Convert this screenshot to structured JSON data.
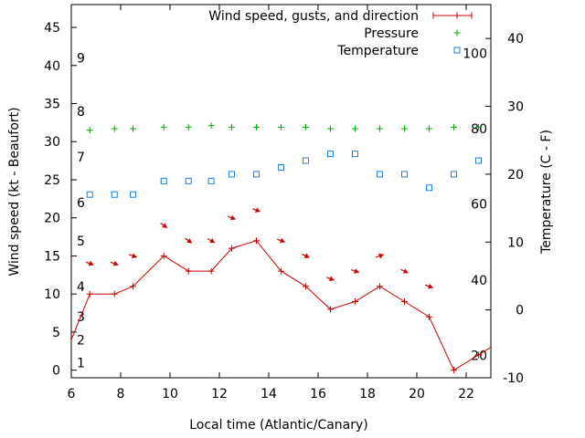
{
  "chart_data": {
    "type": "line",
    "xlabel": "Local time (Atlantic/Canary)",
    "ylabel": "Wind speed (kt - Beaufort)",
    "y2label": "Temperature (C - F)",
    "xlim": [
      6,
      23
    ],
    "ylim": [
      -1,
      48
    ],
    "y2lim": [
      -10,
      45
    ],
    "x_ticks": [
      6,
      8,
      10,
      12,
      14,
      16,
      18,
      20,
      22
    ],
    "y_ticks": [
      0,
      5,
      10,
      15,
      20,
      25,
      30,
      35,
      40,
      45
    ],
    "y2_ticks": [
      -10,
      0,
      10,
      20,
      30,
      40
    ],
    "beaufort_labels": [
      {
        "label": "1",
        "y": 1
      },
      {
        "label": "2",
        "y": 4
      },
      {
        "label": "3",
        "y": 7
      },
      {
        "label": "4",
        "y": 11
      },
      {
        "label": "5",
        "y": 17
      },
      {
        "label": "6",
        "y": 22
      },
      {
        "label": "7",
        "y": 28
      },
      {
        "label": "8",
        "y": 34
      },
      {
        "label": "9",
        "y": 41
      }
    ],
    "fahrenheit_labels": [
      {
        "label": "20",
        "y2": -6.7
      },
      {
        "label": "40",
        "y2": 4.4
      },
      {
        "label": "60",
        "y2": 15.6
      },
      {
        "label": "80",
        "y2": 26.7
      },
      {
        "label": "100",
        "y2": 37.8
      }
    ],
    "legend": {
      "placement": "top-right",
      "entries": [
        "Wind speed, gusts, and direction",
        "Pressure",
        "Temperature"
      ]
    },
    "colors": {
      "wind": "#cc0000",
      "pressure": "#00aa00",
      "temperature": "#1e7fd6"
    },
    "series": [
      {
        "name": "Wind speed, gusts, and direction",
        "x": [
          6,
          6.75,
          7.75,
          8.5,
          9.75,
          10.75,
          11.67,
          12.5,
          13.5,
          14.5,
          15.5,
          16.5,
          17.5,
          18.5,
          19.5,
          20.5,
          21.5,
          22.5,
          23
        ],
        "y": [
          4,
          10,
          10,
          11,
          15,
          13,
          13,
          16,
          17,
          13,
          11,
          8,
          9,
          11,
          9,
          7,
          0,
          2,
          3
        ]
      },
      {
        "name": "Pressure",
        "x": [
          6.75,
          7.75,
          8.5,
          9.75,
          10.75,
          11.67,
          12.5,
          13.5,
          14.5,
          15.5,
          16.5,
          17.5,
          18.5,
          19.5,
          20.5,
          21.5,
          22.5
        ],
        "y": [
          31.5,
          31.7,
          31.7,
          31.9,
          31.9,
          32.1,
          31.9,
          31.9,
          31.9,
          31.9,
          31.7,
          31.7,
          31.7,
          31.7,
          31.7,
          31.9,
          31.9
        ]
      },
      {
        "name": "Temperature",
        "x": [
          6.75,
          7.75,
          8.5,
          9.75,
          10.75,
          11.67,
          12.5,
          13.5,
          14.5,
          15.5,
          16.5,
          17.5,
          18.5,
          19.5,
          20.5,
          21.5,
          22.5
        ],
        "y2": [
          17,
          17,
          17,
          19,
          19,
          19,
          20,
          20,
          21,
          22,
          23,
          23,
          20,
          20,
          18,
          20,
          22
        ]
      }
    ],
    "wind_direction_arrows": {
      "x": [
        6.75,
        7.75,
        8.5,
        9.75,
        10.75,
        11.67,
        12.5,
        13.5,
        14.5,
        15.5,
        16.5,
        17.5,
        18.5,
        19.5,
        20.5
      ],
      "y": [
        14,
        14,
        15,
        19,
        17,
        17,
        20,
        21,
        17,
        15,
        12,
        13,
        15,
        13,
        11
      ],
      "heading_deg": [
        20,
        20,
        20,
        35,
        35,
        30,
        20,
        20,
        20,
        25,
        20,
        20,
        340,
        25,
        20
      ]
    }
  }
}
